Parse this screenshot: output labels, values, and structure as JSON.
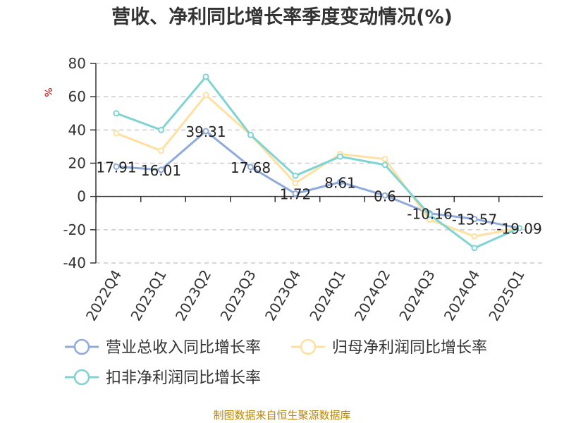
{
  "chart_data": {
    "type": "line",
    "title": "营收、净利同比增长率季度变动情况(%)",
    "ylabel": "%",
    "xlabel": "",
    "ylim": [
      -40,
      80
    ],
    "yticks": [
      80,
      60,
      40,
      20,
      0,
      -20,
      -40
    ],
    "grid": true,
    "legend_position": "bottom",
    "categories": [
      "2022Q4",
      "2023Q1",
      "2023Q2",
      "2023Q3",
      "2023Q4",
      "2024Q1",
      "2024Q2",
      "2024Q3",
      "2024Q4",
      "2025Q1"
    ],
    "series": [
      {
        "name": "营业总收入同比增长率",
        "color": "#8faadc",
        "values": [
          17.91,
          16.01,
          39.31,
          17.68,
          1.72,
          8.61,
          0.6,
          -10.16,
          -13.57,
          -19.09
        ],
        "labels": [
          "17.91",
          "16.01",
          "39.31",
          "17.68",
          "1.72",
          "8.61",
          "0.6",
          "-10.16",
          "-13.57",
          "-19.09"
        ]
      },
      {
        "name": "归母净利润同比增长率",
        "color": "#ffe0a0",
        "values": [
          38,
          27.5,
          61,
          37,
          8,
          25.5,
          22.5,
          -14,
          -24,
          -19
        ]
      },
      {
        "name": "扣非净利润同比增长率",
        "color": "#7fd3d3",
        "values": [
          50,
          40,
          72,
          37,
          12.5,
          24,
          19,
          -11,
          -31,
          -19
        ]
      }
    ]
  },
  "source": "制图数据来自恒生聚源数据库"
}
